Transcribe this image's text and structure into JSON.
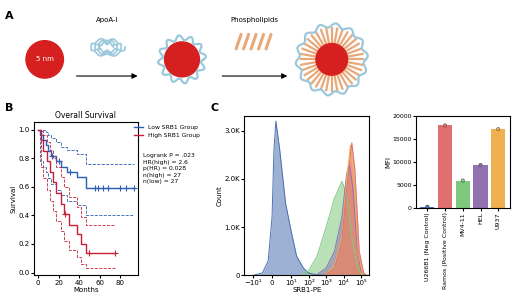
{
  "diagram": {
    "panel_label": "A",
    "nanoparticle_label": "5 nm",
    "steps": [
      "ApoA-I",
      "Phospholipids"
    ]
  },
  "chart_data": [
    {
      "type": "step",
      "panel_label": "B",
      "title": "Overall Survival",
      "x_label": "Months",
      "y_label": "Survival",
      "xlim": [
        -4,
        97
      ],
      "xticks": [
        0,
        20,
        40,
        60,
        80
      ],
      "ylim": [
        -0.02,
        1.05
      ],
      "yticks": [
        0.0,
        0.2,
        0.4,
        0.6,
        0.8,
        1.0
      ],
      "legend": "upper right",
      "annotations": [
        "Logrank P = .023",
        "HR(high) = 2.6",
        "p(HR) = 0.028",
        "n(high) = 27",
        "n(low) = 27"
      ],
      "series": [
        {
          "name": "Low SRB1 Group",
          "color": "#2b5fb4",
          "marker": "plus",
          "x": [
            0,
            2,
            5,
            8,
            10,
            13,
            18,
            22,
            28,
            38,
            47,
            93
          ],
          "values": [
            1.0,
            0.963,
            0.926,
            0.889,
            0.852,
            0.815,
            0.778,
            0.741,
            0.704,
            0.667,
            0.59,
            0.59
          ],
          "ci_lower": [
            1.0,
            0.78,
            0.74,
            0.7,
            0.66,
            0.62,
            0.58,
            0.54,
            0.5,
            0.47,
            0.4,
            0.4
          ],
          "ci_upper": [
            1.0,
            1.0,
            1.0,
            0.98,
            0.96,
            0.94,
            0.91,
            0.88,
            0.86,
            0.83,
            0.76,
            0.76
          ],
          "censored": [
            14,
            20,
            31,
            55,
            58,
            63,
            68,
            80,
            86,
            93
          ]
        },
        {
          "name": "High SRB1 Group",
          "color": "#c8203c",
          "marker": "plus",
          "x": [
            0,
            3,
            5,
            9,
            12,
            15,
            18,
            22,
            25,
            30,
            38,
            42,
            47,
            75
          ],
          "values": [
            1.0,
            0.926,
            0.852,
            0.778,
            0.704,
            0.63,
            0.556,
            0.481,
            0.407,
            0.333,
            0.267,
            0.2,
            0.14,
            0.14
          ],
          "ci_lower": [
            1.0,
            0.74,
            0.66,
            0.58,
            0.5,
            0.43,
            0.36,
            0.29,
            0.22,
            0.16,
            0.11,
            0.06,
            0.03,
            0.03
          ],
          "ci_upper": [
            1.0,
            0.99,
            0.96,
            0.91,
            0.86,
            0.8,
            0.74,
            0.67,
            0.6,
            0.53,
            0.46,
            0.39,
            0.33,
            0.33
          ],
          "censored": [
            26,
            50,
            75
          ]
        }
      ]
    },
    {
      "type": "area",
      "panel_label": "C",
      "x_label": "SRB1-PE",
      "y_label": "Count",
      "log": "x",
      "xlim": [
        -30,
        300000
      ],
      "xticks": [
        {
          "value": -10,
          "label": "−10¹"
        },
        0,
        {
          "value": 10,
          "label": "10¹"
        },
        {
          "value": 100,
          "label": "10²"
        },
        {
          "value": 1000,
          "label": "10³"
        },
        {
          "value": 10000,
          "label": "10⁴"
        },
        {
          "value": 100000,
          "label": "10⁵"
        }
      ],
      "ylim": [
        0,
        3300
      ],
      "yticks": [
        0,
        {
          "value": 1000,
          "label": "1.0K"
        },
        {
          "value": 2000,
          "label": "2.0K"
        },
        {
          "value": 3000,
          "label": "3.0K"
        }
      ],
      "series": [
        {
          "color": "#4c72b0",
          "x": [
            -10,
            -5,
            -2,
            0,
            1,
            2,
            4,
            7,
            10,
            20,
            50,
            100,
            300,
            1000
          ],
          "values": [
            0,
            50,
            300,
            1200,
            2600,
            3200,
            2600,
            1500,
            900,
            400,
            150,
            50,
            10,
            0
          ]
        },
        {
          "color": "#7fc97f",
          "x": [
            30,
            100,
            300,
            1000,
            3000,
            8000,
            15000,
            30000,
            60000,
            100000,
            200000
          ],
          "values": [
            0,
            100,
            400,
            1000,
            1600,
            1950,
            1700,
            800,
            200,
            30,
            0
          ]
        },
        {
          "color": "#9370b0",
          "x": [
            300,
            1000,
            3000,
            8000,
            15000,
            22000,
            35000,
            60000,
            100000,
            200000
          ],
          "values": [
            20,
            150,
            500,
            1200,
            2100,
            2300,
            1800,
            600,
            100,
            0
          ]
        },
        {
          "color": "#f0b050",
          "x": [
            1000,
            3000,
            8000,
            15000,
            25000,
            40000,
            70000,
            120000,
            200000
          ],
          "values": [
            30,
            200,
            800,
            2000,
            2700,
            2000,
            500,
            50,
            0
          ]
        },
        {
          "color": "#e07070",
          "x": [
            1000,
            3000,
            8000,
            15000,
            30000,
            45000,
            80000,
            150000,
            250000
          ],
          "values": [
            20,
            150,
            700,
            1800,
            2750,
            2200,
            500,
            30,
            0
          ]
        }
      ]
    },
    {
      "type": "bar",
      "y_label": "MFI",
      "marker": "circle",
      "categories": [
        "U266B1 (Neg Control)",
        "Ramos (Positive Control)",
        "MV4-11",
        "HEL",
        "U937"
      ],
      "values": [
        300,
        18000,
        6000,
        9400,
        17200
      ],
      "colors": [
        "#4c72b0",
        "#e07070",
        "#7fc97f",
        "#9370b0",
        "#f0b050"
      ],
      "ylim": [
        0,
        20000
      ],
      "yticks": [
        0,
        5000,
        10000,
        15000,
        20000
      ]
    }
  ]
}
